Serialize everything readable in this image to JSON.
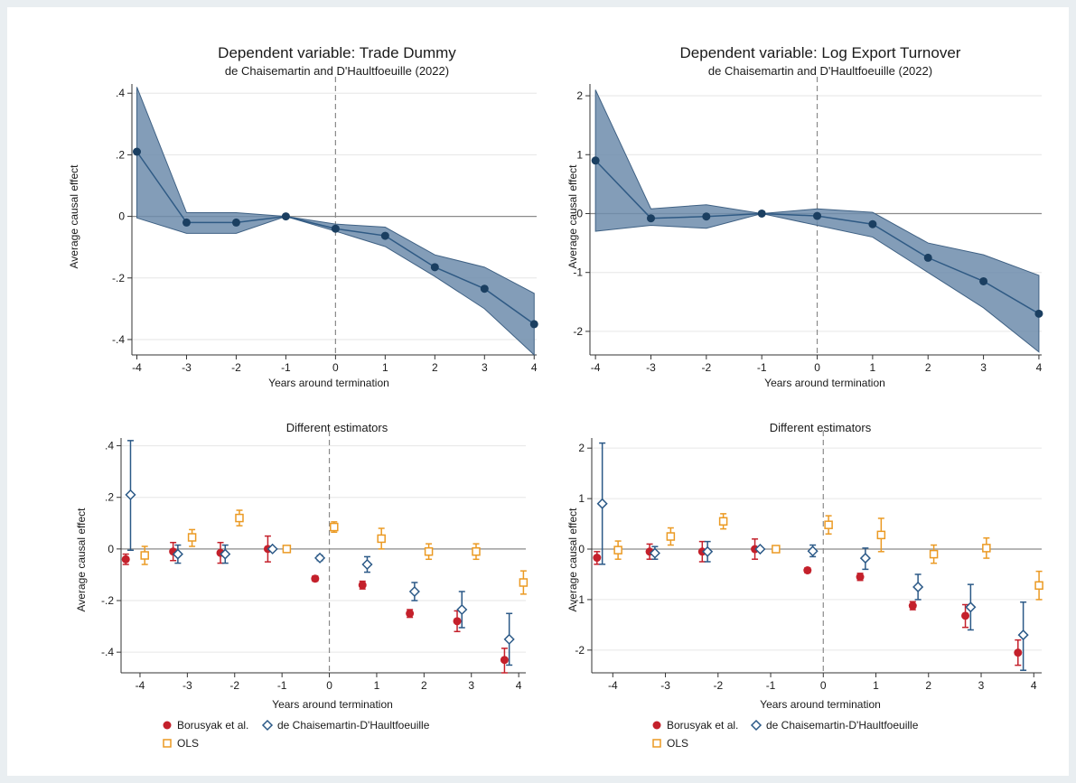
{
  "colors": {
    "band_fill": "#6d8cab",
    "band_stroke": "#3f6184",
    "line": "#2f5a84",
    "point": "#1b3f61",
    "borusyak": "#c4202b",
    "dch": "#2b5987",
    "ols": "#eb9a23",
    "zero_line": "#8a8a8a",
    "grid": "#e6e6e6"
  },
  "legend": {
    "borusyak": "Borusyak et al.",
    "dch": "de Chaisemartin-D'Haultfoeuille",
    "ols": "OLS"
  },
  "chart_data": [
    {
      "type": "line",
      "title": "Dependent variable: Trade Dummy",
      "subtitle": "de Chaisemartin and D'Haultfoeuille (2022)",
      "xlabel": "Years around termination",
      "ylabel": "Average causal effect",
      "x": [
        -4,
        -3,
        -2,
        -1,
        0,
        1,
        2,
        3,
        4
      ],
      "xlim": [
        -4.1,
        4.05
      ],
      "ylim": [
        -0.45,
        0.43
      ],
      "yticks": [
        0.4,
        0.2,
        0,
        -0.2,
        -0.4
      ],
      "ytick_labels": [
        ".4",
        ".2",
        "0",
        "-.2",
        "-.4"
      ],
      "xtick_labels": [
        "-4",
        "-3",
        "-2",
        "-1",
        "0",
        "1",
        "2",
        "3",
        "4"
      ],
      "series": [
        {
          "values": [
            0.21,
            -0.02,
            -0.02,
            0,
            -0.04,
            -0.063,
            -0.165,
            -0.235,
            -0.35
          ],
          "ci_low": [
            -0.005,
            -0.055,
            -0.055,
            0,
            -0.048,
            -0.098,
            -0.195,
            -0.3,
            -0.45
          ],
          "ci_high": [
            0.42,
            0.012,
            0.012,
            0,
            -0.025,
            -0.035,
            -0.125,
            -0.165,
            -0.25
          ]
        }
      ],
      "grid": true
    },
    {
      "type": "line",
      "title": "Dependent variable: Log Export Turnover",
      "subtitle": "de Chaisemartin and D'Haultfoeuille (2022)",
      "xlabel": "Years around termination",
      "ylabel": "Average causal effect",
      "x": [
        -4,
        -3,
        -2,
        -1,
        0,
        1,
        2,
        3,
        4
      ],
      "xlim": [
        -4.1,
        4.05
      ],
      "ylim": [
        -2.4,
        2.2
      ],
      "yticks": [
        2,
        1,
        0,
        -1,
        -2
      ],
      "ytick_labels": [
        "2",
        "1",
        "0",
        "-1",
        "-2"
      ],
      "xtick_labels": [
        "-4",
        "-3",
        "-2",
        "-1",
        "0",
        "1",
        "2",
        "3",
        "4"
      ],
      "series": [
        {
          "values": [
            0.9,
            -0.08,
            -0.05,
            0,
            -0.04,
            -0.18,
            -0.75,
            -1.15,
            -1.7
          ],
          "ci_low": [
            -0.3,
            -0.2,
            -0.25,
            0,
            -0.2,
            -0.4,
            -1.0,
            -1.6,
            -2.35
          ],
          "ci_high": [
            2.1,
            0.08,
            0.15,
            0,
            0.08,
            0.02,
            -0.5,
            -0.7,
            -1.05
          ]
        }
      ],
      "grid": true
    },
    {
      "type": "scatter",
      "title": "Different estimators",
      "xlabel": "Years around termination",
      "ylabel": "Average causal effect",
      "x": [
        -4,
        -3,
        -2,
        -1,
        0,
        1,
        2,
        3,
        4
      ],
      "xlim": [
        -4.4,
        4.15
      ],
      "ylim": [
        -0.48,
        0.43
      ],
      "yticks": [
        0.4,
        0.2,
        0,
        -0.2,
        -0.4
      ],
      "ytick_labels": [
        ".4",
        ".2",
        "0",
        "-.2",
        "-.4"
      ],
      "xtick_labels": [
        "-4",
        "-3",
        "-2",
        "-1",
        "0",
        "1",
        "2",
        "3",
        "4"
      ],
      "series": [
        {
          "key": "borusyak",
          "name": "Borusyak et al.",
          "offset": -0.3,
          "values": [
            -0.04,
            -0.01,
            -0.015,
            0,
            -0.115,
            -0.14,
            -0.25,
            -0.28,
            -0.43
          ],
          "ci_low": [
            -0.06,
            -0.045,
            -0.055,
            -0.05,
            -0.125,
            -0.155,
            -0.265,
            -0.32,
            -0.48
          ],
          "ci_high": [
            -0.02,
            0.025,
            0.025,
            0.05,
            -0.105,
            -0.125,
            -0.235,
            -0.24,
            -0.385
          ]
        },
        {
          "key": "dch",
          "name": "de Chaisemartin-D'Haultfoeuille",
          "offset": -0.2,
          "values": [
            0.21,
            -0.02,
            -0.02,
            0,
            -0.035,
            -0.06,
            -0.165,
            -0.235,
            -0.35
          ],
          "ci_low": [
            -0.005,
            -0.055,
            -0.055,
            0,
            -0.045,
            -0.09,
            -0.2,
            -0.305,
            -0.45
          ],
          "ci_high": [
            0.42,
            0.015,
            0.015,
            0,
            -0.025,
            -0.03,
            -0.13,
            -0.165,
            -0.25
          ]
        },
        {
          "key": "ols",
          "name": "OLS",
          "offset": 0.1,
          "values": [
            -0.025,
            0.045,
            0.12,
            0,
            0.085,
            0.04,
            -0.01,
            -0.01,
            -0.13
          ],
          "ci_low": [
            -0.06,
            0.01,
            0.09,
            0,
            0.065,
            0.0,
            -0.04,
            -0.04,
            -0.175
          ],
          "ci_high": [
            0.01,
            0.075,
            0.15,
            0,
            0.105,
            0.08,
            0.02,
            0.02,
            -0.085
          ]
        }
      ],
      "grid": true
    },
    {
      "type": "scatter",
      "title": "Different estimators",
      "xlabel": "Years around termination",
      "ylabel": "Average causal effect",
      "x": [
        -4,
        -3,
        -2,
        -1,
        0,
        1,
        2,
        3,
        4
      ],
      "xlim": [
        -4.4,
        4.15
      ],
      "ylim": [
        -2.45,
        2.2
      ],
      "yticks": [
        2,
        1,
        0,
        -1,
        -2
      ],
      "ytick_labels": [
        "2",
        "1",
        "0",
        "-1",
        "-2"
      ],
      "xtick_labels": [
        "-4",
        "-3",
        "-2",
        "-1",
        "0",
        "1",
        "2",
        "3",
        "4"
      ],
      "series": [
        {
          "key": "borusyak",
          "name": "Borusyak et al.",
          "offset": -0.3,
          "values": [
            -0.17,
            -0.05,
            -0.05,
            0,
            -0.42,
            -0.55,
            -1.12,
            -1.32,
            -2.05
          ],
          "ci_low": [
            -0.3,
            -0.2,
            -0.25,
            -0.2,
            -0.47,
            -0.62,
            -1.2,
            -1.55,
            -2.3
          ],
          "ci_high": [
            -0.05,
            0.1,
            0.15,
            0.2,
            -0.37,
            -0.48,
            -1.04,
            -1.1,
            -1.8
          ]
        },
        {
          "key": "dch",
          "name": "de Chaisemartin-D'Haultfoeuille",
          "offset": -0.2,
          "values": [
            0.9,
            -0.08,
            -0.05,
            0,
            -0.04,
            -0.18,
            -0.75,
            -1.15,
            -1.7
          ],
          "ci_low": [
            -0.3,
            -0.2,
            -0.25,
            0,
            -0.15,
            -0.4,
            -1.0,
            -1.6,
            -2.4
          ],
          "ci_high": [
            2.1,
            0.05,
            0.15,
            0,
            0.08,
            0.02,
            -0.5,
            -0.7,
            -1.05
          ]
        },
        {
          "key": "ols",
          "name": "OLS",
          "offset": 0.1,
          "values": [
            -0.02,
            0.25,
            0.55,
            0,
            0.48,
            0.28,
            -0.1,
            0.02,
            -0.72
          ],
          "ci_low": [
            -0.2,
            0.08,
            0.4,
            0,
            0.3,
            -0.05,
            -0.28,
            -0.18,
            -1.0
          ],
          "ci_high": [
            0.16,
            0.42,
            0.7,
            0,
            0.66,
            0.61,
            0.08,
            0.22,
            -0.44
          ]
        }
      ],
      "grid": true
    }
  ]
}
